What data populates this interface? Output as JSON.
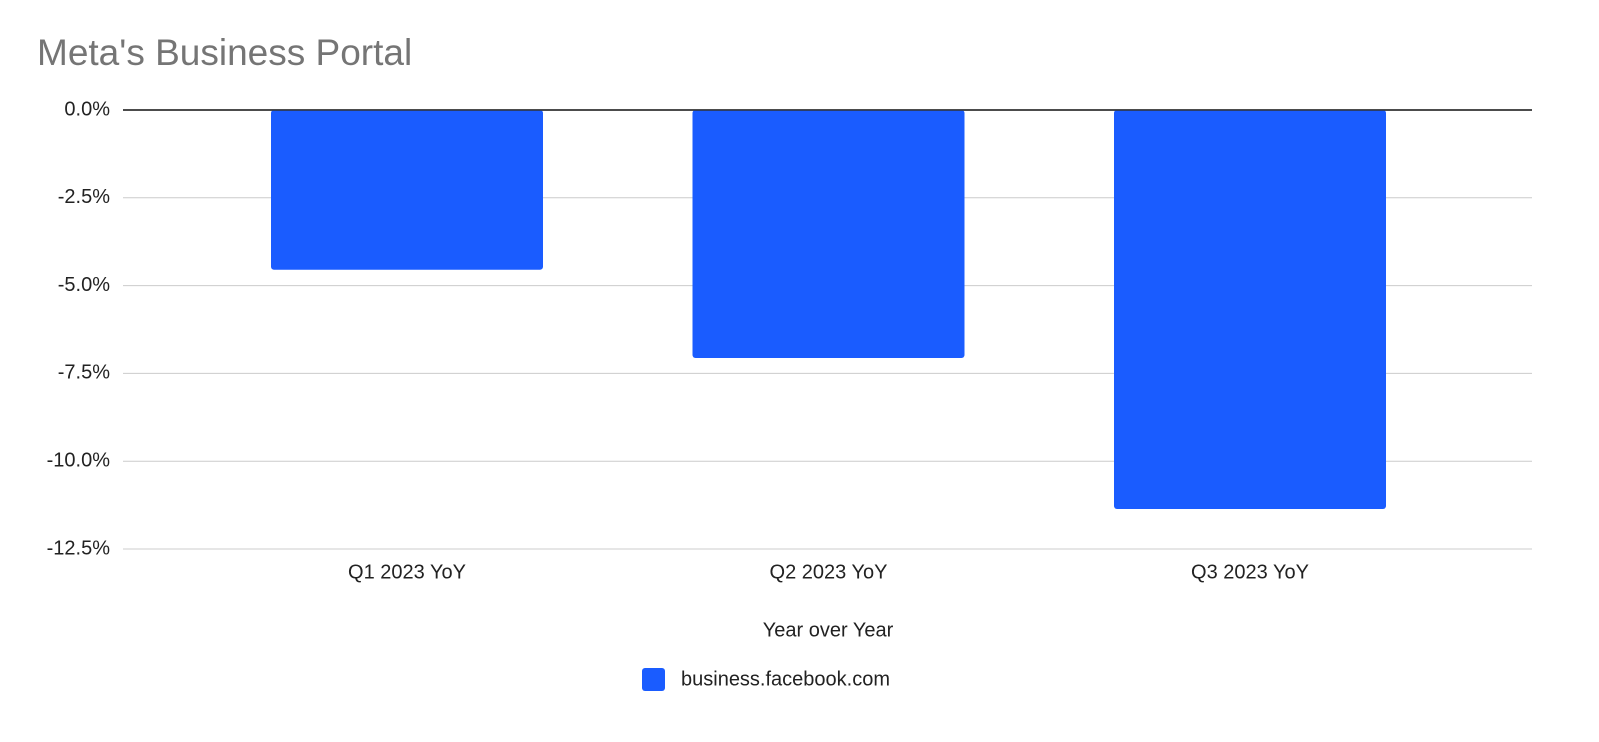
{
  "chart_data": {
    "type": "bar",
    "title": "Meta's Business Portal",
    "categories": [
      "Q1 2023 YoY",
      "Q2 2023 YoY",
      "Q3 2023 YoY"
    ],
    "series": [
      {
        "name": "business.facebook.com",
        "color": "#1a5cff",
        "values": [
          -4.55,
          -7.06,
          -11.36
        ]
      }
    ],
    "x_label": "Year over Year",
    "ylim": [
      -12.5,
      0
    ],
    "yticks": [
      {
        "value": 0,
        "label": "0.0%"
      },
      {
        "value": -2.5,
        "label": "-2.5%"
      },
      {
        "value": -5,
        "label": "-5.0%"
      },
      {
        "value": -7.5,
        "label": "-7.5%"
      },
      {
        "value": -10,
        "label": "-10.0%"
      },
      {
        "value": -12.5,
        "label": "-12.5%"
      }
    ],
    "grid": true,
    "legend": "bottom"
  }
}
